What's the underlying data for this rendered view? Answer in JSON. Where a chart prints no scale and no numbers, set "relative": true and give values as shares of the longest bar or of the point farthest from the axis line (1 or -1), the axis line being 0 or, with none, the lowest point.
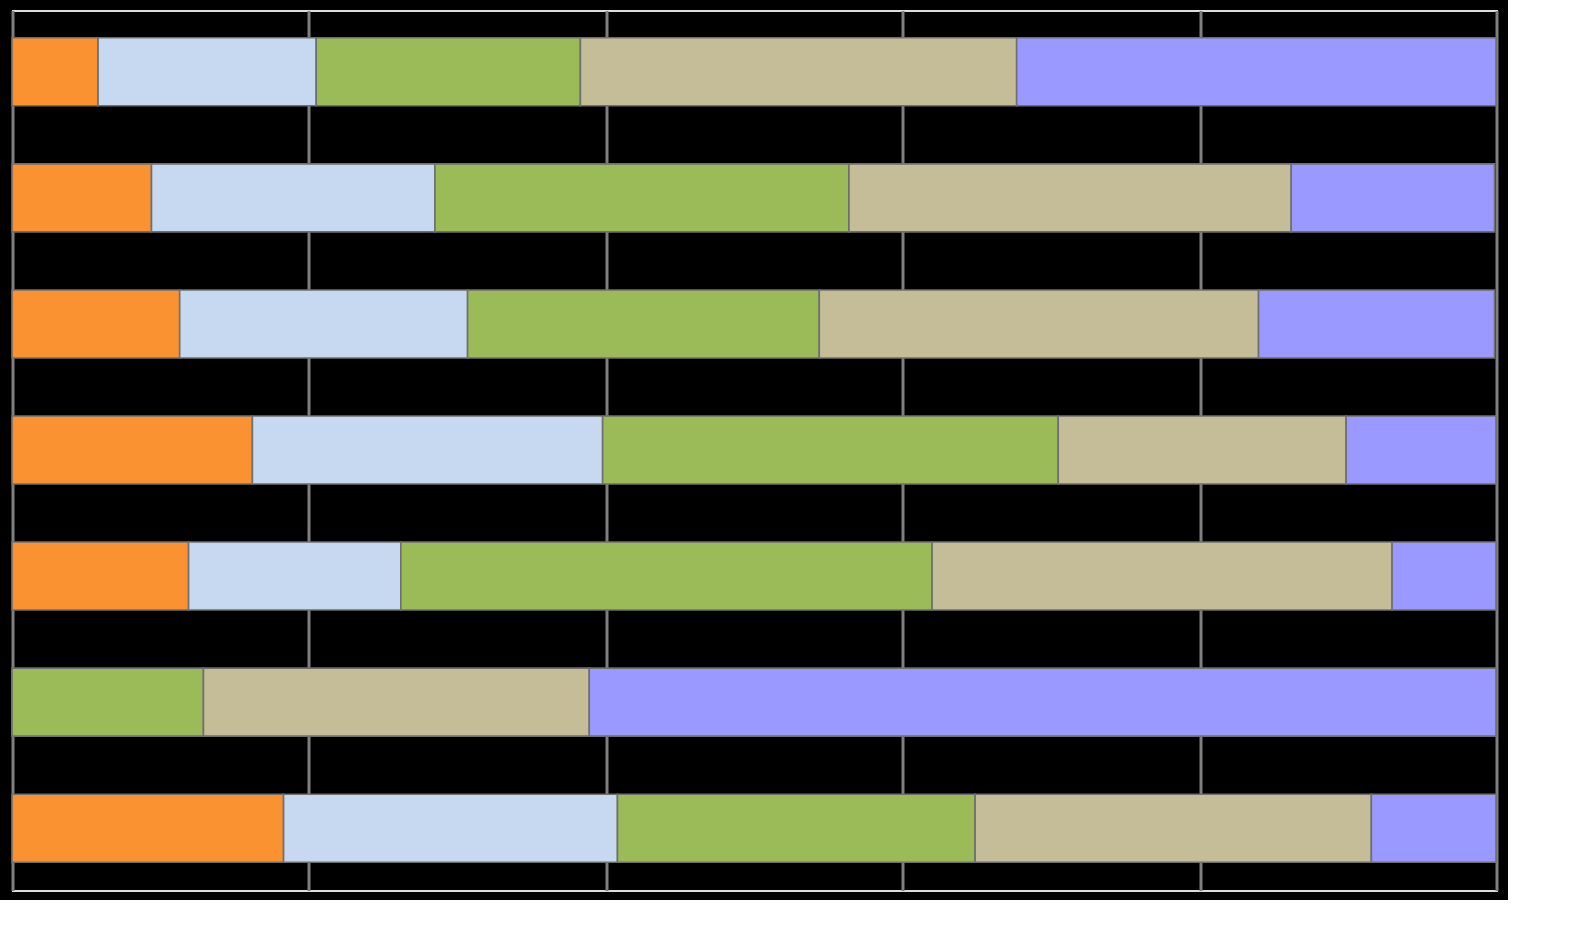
{
  "chart_data": {
    "type": "bar",
    "orientation": "horizontal",
    "stacked": true,
    "relative": true,
    "grid": "x",
    "legend": false,
    "tick_labels": false,
    "categories": [
      null,
      null,
      null,
      null,
      null,
      null,
      null
    ],
    "series": [
      {
        "color": "#fb9232",
        "values": [
          0.058,
          0.094,
          0.113,
          0.162,
          0.119,
          0,
          0.183
        ]
      },
      {
        "color": "#c6d9f1",
        "values": [
          0.147,
          0.191,
          0.194,
          0.236,
          0.143,
          0,
          0.225
        ]
      },
      {
        "color": "#9bbb59",
        "values": [
          0.178,
          0.279,
          0.237,
          0.307,
          0.358,
          0.129,
          0.241
        ]
      },
      {
        "color": "#c4bd97",
        "values": [
          0.294,
          0.298,
          0.296,
          0.194,
          0.31,
          0.26,
          0.267
        ]
      },
      {
        "color": "#9999ff",
        "values": [
          0.323,
          0.137,
          0.159,
          0.101,
          0.07,
          0.611,
          0.084
        ]
      }
    ]
  }
}
